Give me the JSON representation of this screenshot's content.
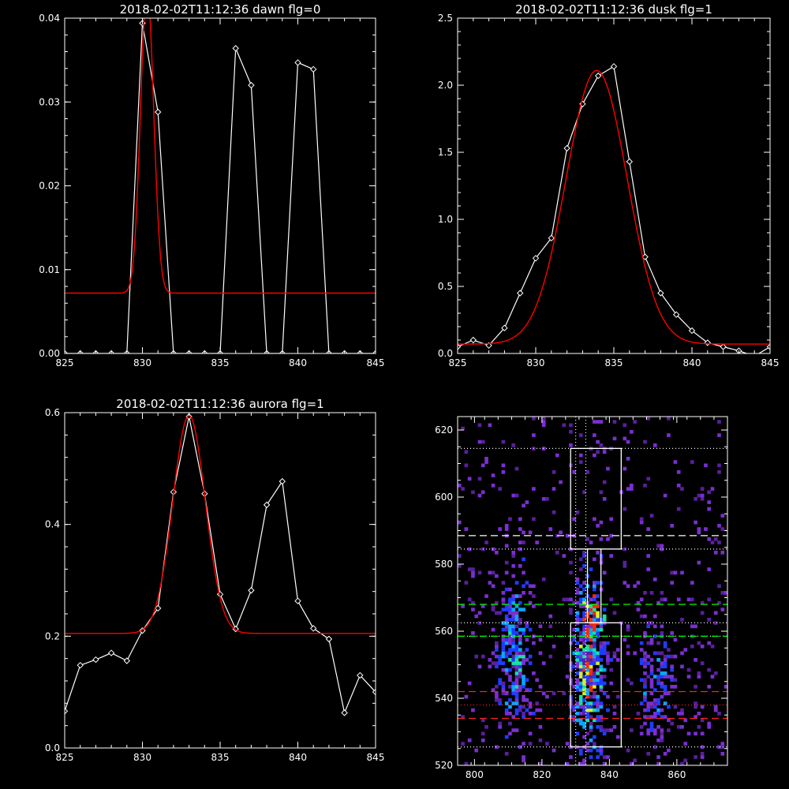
{
  "chart_data": [
    {
      "type": "line",
      "title": "2018-02-02T11:12:36 dawn flg=0",
      "xlabel": "",
      "ylabel": "",
      "xlim": [
        825,
        845
      ],
      "ylim": [
        0,
        0.04
      ],
      "xticks": [
        825,
        830,
        835,
        840,
        845
      ],
      "yticks": [
        0.0,
        0.01,
        0.02,
        0.03,
        0.04
      ],
      "ytick_labels": [
        "0.00",
        "0.01",
        "0.02",
        "0.03",
        "0.04"
      ],
      "series": [
        {
          "kind": "observed",
          "color": "#ffffff",
          "markers": "diamond",
          "x": [
            825,
            826,
            827,
            828,
            829,
            830,
            831,
            832,
            833,
            834,
            835,
            836,
            837,
            838,
            839,
            840,
            841,
            842,
            843,
            844,
            845
          ],
          "y": [
            0,
            0,
            0,
            0,
            0,
            0.0394,
            0.0288,
            0,
            0,
            0,
            0,
            0.0364,
            0.032,
            0,
            0,
            0.0347,
            0.0339,
            0,
            0,
            0,
            0
          ]
        },
        {
          "kind": "gaussian-fit",
          "color": "#ff0000",
          "gauss": {
            "amplitude": 0.0365,
            "center": 830.3,
            "sigma": 0.42,
            "offset": 0.0072
          }
        }
      ]
    },
    {
      "type": "line",
      "title": "2018-02-02T11:12:36 dusk flg=1",
      "xlabel": "",
      "ylabel": "",
      "xlim": [
        825,
        845
      ],
      "ylim": [
        0,
        2.5
      ],
      "xticks": [
        825,
        830,
        835,
        840,
        845
      ],
      "yticks": [
        0.0,
        0.5,
        1.0,
        1.5,
        2.0,
        2.5
      ],
      "ytick_labels": [
        "0.0",
        "0.5",
        "1.0",
        "1.5",
        "2.0",
        "2.5"
      ],
      "series": [
        {
          "kind": "observed",
          "color": "#ffffff",
          "markers": "diamond",
          "x": [
            825,
            826,
            827,
            828,
            829,
            830,
            831,
            832,
            833,
            834,
            835,
            836,
            837,
            838,
            839,
            840,
            841,
            842,
            843,
            844,
            845
          ],
          "y": [
            0.05,
            0.1,
            0.06,
            0.19,
            0.45,
            0.71,
            0.86,
            1.53,
            1.86,
            2.07,
            2.14,
            1.43,
            0.72,
            0.45,
            0.29,
            0.17,
            0.08,
            0.05,
            0.02,
            -0.02,
            0.05
          ]
        },
        {
          "kind": "gaussian-fit",
          "color": "#ff0000",
          "gauss": {
            "amplitude": 2.04,
            "center": 833.9,
            "sigma": 1.95,
            "offset": 0.07
          }
        }
      ]
    },
    {
      "type": "line",
      "title": "2018-02-02T11:12:36 aurora flg=1",
      "xlabel": "",
      "ylabel": "",
      "xlim": [
        825,
        845
      ],
      "ylim": [
        0,
        0.6
      ],
      "xticks": [
        825,
        830,
        835,
        840,
        845
      ],
      "yticks": [
        0.0,
        0.2,
        0.4,
        0.6
      ],
      "ytick_labels": [
        "0.0",
        "0.2",
        "0.4",
        "0.6"
      ],
      "series": [
        {
          "kind": "observed",
          "color": "#ffffff",
          "markers": "diamond",
          "x": [
            825,
            826,
            827,
            828,
            829,
            830,
            831,
            832,
            833,
            834,
            835,
            836,
            837,
            838,
            839,
            840,
            841,
            842,
            843,
            844,
            845
          ],
          "y": [
            0.066,
            0.148,
            0.158,
            0.17,
            0.156,
            0.21,
            0.25,
            0.458,
            0.593,
            0.455,
            0.275,
            0.213,
            0.282,
            0.435,
            0.477,
            0.263,
            0.214,
            0.195,
            0.063,
            0.13,
            0.1
          ]
        },
        {
          "kind": "gaussian-fit",
          "color": "#ff0000",
          "gauss": {
            "amplitude": 0.39,
            "center": 833.0,
            "sigma": 1.05,
            "offset": 0.205
          }
        }
      ]
    },
    {
      "type": "heatmap",
      "title": "",
      "xlabel": "",
      "ylabel": "",
      "xlim": [
        795,
        875
      ],
      "ylim": [
        520,
        624
      ],
      "xticks": [
        800,
        820,
        840,
        860
      ],
      "yticks": [
        520,
        540,
        560,
        580,
        600,
        620
      ],
      "colorscale": [
        "#000000",
        "#5a1f9e",
        "#7a2fd0",
        "#1f3cff",
        "#0aa6ff",
        "#18e0a6",
        "#d8f020",
        "#ff2a00"
      ],
      "bands": [
        {
          "x": 834,
          "y": 550,
          "sx": 3.2,
          "sy": 18,
          "amp": 6.0,
          "weight": 0.95
        },
        {
          "x": 812,
          "y": 553,
          "sx": 3.5,
          "sy": 16,
          "amp": 3.6,
          "weight": 0.7
        },
        {
          "x": 854,
          "y": 545,
          "sx": 4.0,
          "sy": 13,
          "amp": 2.6,
          "weight": 0.55
        },
        {
          "x": 835,
          "y": 565,
          "sx": 2.2,
          "sy": 4,
          "amp": 6.5,
          "weight": 0.95
        }
      ],
      "background_level": 0.05,
      "vertical_lines": [
        {
          "x": 830,
          "color": "#ffffff",
          "style": "dotted"
        },
        {
          "x": 833,
          "color": "#ffffff",
          "style": "dotted"
        }
      ],
      "horizontal_lines": [
        {
          "y": 614.5,
          "color": "#ffffff",
          "style": "dotted"
        },
        {
          "y": 588.5,
          "color": "#ffffff",
          "style": "dashed"
        },
        {
          "y": 584.5,
          "color": "#ffffff",
          "style": "dotted"
        },
        {
          "y": 568,
          "color": "#00ff00",
          "style": "dashed"
        },
        {
          "y": 562.5,
          "color": "#ffffff",
          "style": "dotted"
        },
        {
          "y": 558.5,
          "color": "#ffffff",
          "style": "dotted"
        },
        {
          "y": 558.5,
          "color": "#00ff00",
          "style": "dashed"
        },
        {
          "y": 542,
          "color": "#ff2020",
          "style": "dashed"
        },
        {
          "y": 538,
          "color": "#ff2020",
          "style": "dotted"
        },
        {
          "y": 534,
          "color": "#ff2020",
          "style": "dashed"
        },
        {
          "y": 525.5,
          "color": "#ffffff",
          "style": "dotted"
        }
      ],
      "boxes": [
        {
          "x0": 828.5,
          "x1": 843.5,
          "y0": 584.5,
          "y1": 614.5
        },
        {
          "x0": 833.5,
          "x1": 837.5,
          "y0": 562.5,
          "y1": 584.5
        },
        {
          "x0": 828.5,
          "x1": 843.5,
          "y0": 525.5,
          "y1": 562.5
        }
      ]
    }
  ]
}
